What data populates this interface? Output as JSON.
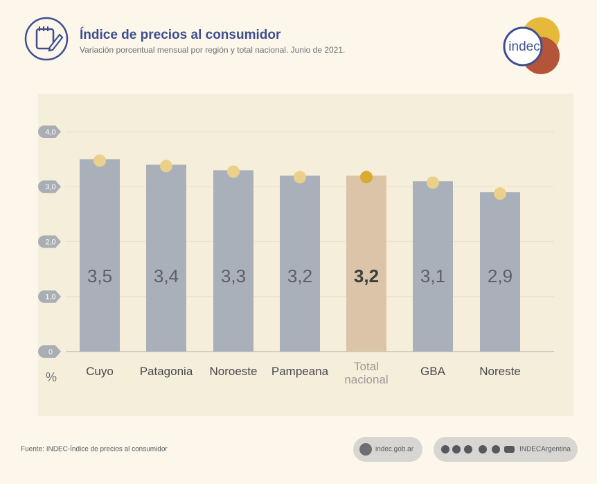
{
  "chart_data": {
    "type": "bar",
    "title": "Índice de precios al consumidor",
    "subtitle": "Variación porcentual mensual por región y total nacional. Junio de 2021.",
    "categories": [
      "Cuyo",
      "Patagonia",
      "Noroeste",
      "Pampeana",
      "Total nacional",
      "GBA",
      "Noreste"
    ],
    "values": [
      3.5,
      3.4,
      3.3,
      3.2,
      3.2,
      3.1,
      2.9
    ],
    "value_labels": [
      "3,5",
      "3,4",
      "3,3",
      "3,2",
      "3,2",
      "3,1",
      "2,9"
    ],
    "colors": [
      "#a9b0b9",
      "#a9b0b9",
      "#a9b0b9",
      "#a9b0b9",
      "#dcc4a8",
      "#a9b0b9",
      "#a9b0b9"
    ],
    "marker_colors": [
      "#ead08a",
      "#ead08a",
      "#ead08a",
      "#ead08a",
      "#d9ab2e",
      "#ead08a",
      "#ead08a"
    ],
    "highlight": "Total nacional",
    "ylim": [
      0,
      4
    ],
    "yticks": [
      0,
      {
        "value": 1,
        "label": "1,0"
      },
      {
        "value": 2,
        "label": "2,0"
      },
      {
        "value": 3,
        "label": "3,0"
      },
      {
        "value": 4,
        "label": "4,0"
      }
    ],
    "y_unit": "%",
    "grid": true,
    "logo": "indec",
    "source": "Fuente: INDEC-Índice de precios al consumidor",
    "website": "indec.gob.ar",
    "social": "INDECArgentina"
  }
}
